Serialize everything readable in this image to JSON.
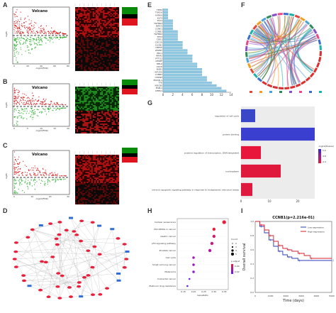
{
  "panels": {
    "A": {
      "label": "A",
      "title": "Volcano",
      "xlabel": "-log10(FDR)",
      "ylabel": "logFC",
      "xticks": [
        "0",
        "20",
        "40",
        "60",
        "80"
      ]
    },
    "B": {
      "label": "B",
      "title": "Volcano",
      "xlabel": "-log10(FDR)",
      "ylabel": "logFC",
      "xticks": [
        "0",
        "5",
        "10",
        "15",
        "20"
      ]
    },
    "C": {
      "label": "C",
      "title": "Volcano",
      "xlabel": "-log10(FDR)",
      "ylabel": "logFC",
      "xticks": [
        "0",
        "10",
        "20",
        "30"
      ]
    },
    "D": {
      "label": "D"
    },
    "E": {
      "label": "E"
    },
    "F": {
      "label": "F"
    },
    "G": {
      "label": "G"
    },
    "H": {
      "label": "H"
    },
    "I": {
      "label": "I"
    }
  },
  "chart_data": [
    {
      "id": "E",
      "type": "bar",
      "orientation": "horizontal",
      "categories": [
        "TPM2",
        "TOP2A",
        "AURKA",
        "KLF5",
        "PLK1",
        "TGFBR3",
        "BIRC5",
        "CCNE1",
        "CCNB1",
        "TGFBR2",
        "TP53",
        "CDK1",
        "CDC20",
        "CLDN1",
        "CEP55",
        "ZWINT",
        "PRC1",
        "RRM2",
        "PTTG1",
        "CENPF",
        "MELK",
        "CDC6",
        "BUB1",
        "KIF20A",
        "CCNB2",
        "CDKN3",
        "MAD2L1",
        "TTK",
        "NDC80",
        "ESPL1",
        "CHEK1"
      ],
      "values": [
        1,
        1,
        1,
        1,
        2,
        2,
        2,
        2,
        3,
        3,
        3,
        3,
        4,
        4,
        4,
        5,
        5,
        6,
        6,
        6,
        7,
        7,
        8,
        8,
        8,
        9,
        9,
        10,
        11,
        12,
        13
      ],
      "xlim": [
        0,
        14
      ],
      "xticks": [
        "0",
        "2",
        "4",
        "6",
        "8",
        "10",
        "12",
        "14"
      ],
      "bar_color": "#8ec9e3"
    },
    {
      "id": "G",
      "type": "bar",
      "orientation": "horizontal",
      "categories": [
        "regulation of cell cycle",
        "protein binding",
        "positive regulation of transcription, DNA-templated",
        "nucleoplasm",
        "intrinsic apoptotic signaling pathway in response to endoplasmic reticulum stress"
      ],
      "values": [
        5,
        26,
        7,
        14,
        4
      ],
      "colors": [
        "#3a46c8",
        "#3a3fd0",
        "#e8163a",
        "#e0183c",
        "#e01a3e"
      ],
      "xlim": [
        0,
        26
      ],
      "xticks": [
        "0",
        "10",
        "20"
      ],
      "legend_title": "-log10(Pvalue)",
      "legend_ticks": [
        "5.6",
        "4.8",
        "4.4"
      ]
    },
    {
      "id": "H",
      "type": "scatter",
      "categories": [
        "Cellular senescence",
        "MicroRNAs in cancer",
        "Gastric cancer",
        "p53 signaling pathway",
        "Prostate cancer",
        "Cell cycle",
        "Small cell lung cancer",
        "Melanoma",
        "Colorectal cancer",
        "Platinum drug resistance"
      ],
      "x": [
        0.35,
        0.3,
        0.3,
        0.29,
        0.28,
        0.2,
        0.2,
        0.2,
        0.18,
        0.17
      ],
      "sizes": [
        5,
        4,
        4,
        4,
        4,
        3,
        3,
        3,
        2,
        2
      ],
      "xlim": [
        0.12,
        0.37
      ],
      "xticks": [
        "0.15",
        "0.20",
        "0.25",
        "0.30",
        "0.35"
      ],
      "xlabel": "GeneRatio",
      "legend_count_title": "Count",
      "legend_count_ticks": [
        "2",
        "3",
        "4",
        "5"
      ],
      "legend_p_title": "p.adjust",
      "legend_p_ticks": [
        "0.04",
        "0.02"
      ]
    },
    {
      "id": "I",
      "type": "line",
      "title": "CCNB1(p=2.216e-01)",
      "xlabel": "Time (days)",
      "ylabel": "Overall survival",
      "xlim": [
        0,
        5000
      ],
      "ylim": [
        0,
        1
      ],
      "xticks": [
        "0",
        "1000",
        "2000",
        "3000",
        "4000",
        "5000"
      ],
      "yticks": [
        "0.0",
        "0.2",
        "0.4",
        "0.6",
        "0.8",
        "1.0"
      ],
      "series": [
        {
          "name": "Low expression",
          "color": "#2b3bb8",
          "x": [
            0,
            300,
            600,
            900,
            1200,
            1500,
            1800,
            2100,
            2400,
            2800,
            3200,
            5000
          ],
          "y": [
            1.0,
            0.93,
            0.84,
            0.74,
            0.65,
            0.58,
            0.53,
            0.5,
            0.48,
            0.45,
            0.45,
            0.45
          ]
        },
        {
          "name": "High expression",
          "color": "#d81e2e",
          "x": [
            0,
            300,
            600,
            900,
            1200,
            1500,
            1800,
            2100,
            2400,
            2800,
            3200,
            3600,
            5000
          ],
          "y": [
            1.0,
            0.95,
            0.88,
            0.8,
            0.72,
            0.66,
            0.62,
            0.6,
            0.58,
            0.55,
            0.52,
            0.48,
            0.48
          ]
        }
      ]
    }
  ]
}
